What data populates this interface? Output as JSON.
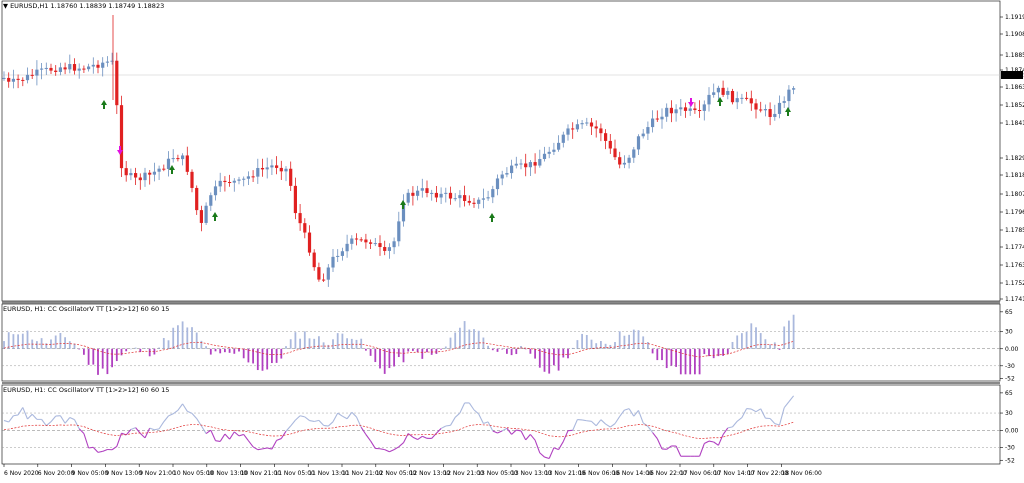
{
  "main_header": {
    "symbol_line": "EURUSD,H1  1.18760 1.18839 1.18749 1.18823"
  },
  "osc1_header": "EURUSD, H1: CC OscillatorV TT [1>2>12]  60 60 15",
  "osc2_header": "EURUSD, H1: CC OscillatorV TT [1>2>12]  60 60 15",
  "price_axis": [
    "1.19190",
    "1.19080",
    "1.18855",
    "1.18745",
    "1.18630",
    "1.18520",
    "1.18410",
    "1.18295",
    "1.18185",
    "1.18075",
    "1.17960",
    "1.17850",
    "1.17740",
    "1.17630",
    "1.17520",
    "1.17410"
  ],
  "current_price": "1.18823",
  "osc_axis_labels": [
    "65",
    "30",
    "0.00",
    "-30",
    "-52"
  ],
  "time_axis": [
    "6 Nov 2020",
    "6 Nov 20:00",
    "9 Nov 05:00",
    "9 Nov 13:00",
    "9 Nov 21:00",
    "10 Nov 05:00",
    "10 Nov 13:00",
    "10 Nov 21:00",
    "11 Nov 05:00",
    "11 Nov 13:00",
    "11 Nov 21:00",
    "12 Nov 05:00",
    "12 Nov 13:00",
    "12 Nov 21:00",
    "13 Nov 05:00",
    "13 Nov 13:00",
    "13 Nov 21:00",
    "16 Nov 06:00",
    "16 Nov 14:00",
    "16 Nov 22:00",
    "17 Nov 06:00",
    "17 Nov 14:00",
    "17 Nov 22:00",
    "18 Nov 06:00"
  ],
  "colors": {
    "bull": "#6b8fbf",
    "bear": "#e02020",
    "arrow_up": "#1a7a1a",
    "arrow_down": "#e010e0",
    "osc_pos": "#aab8dd",
    "osc_neg": "#b040c0",
    "signal": "#e03030"
  }
}
